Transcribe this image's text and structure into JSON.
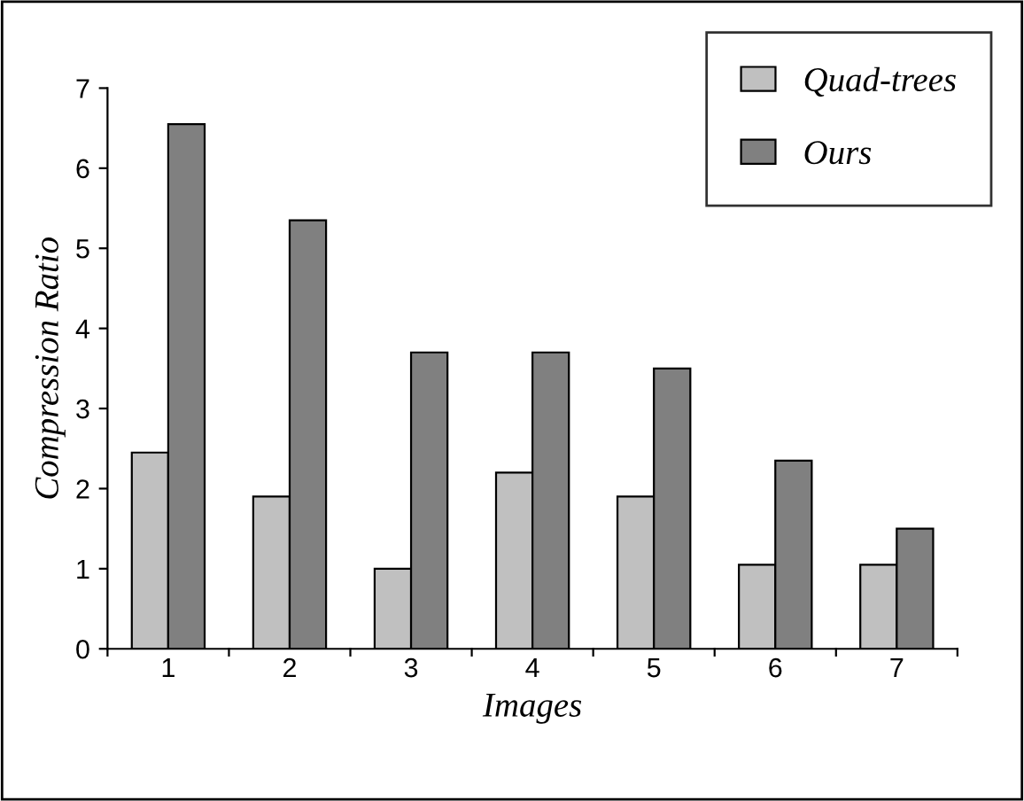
{
  "chart_data": {
    "type": "bar",
    "xlabel": "Images",
    "ylabel": "Compression Ratio",
    "categories": [
      "1",
      "2",
      "3",
      "4",
      "5",
      "6",
      "7"
    ],
    "series": [
      {
        "name": "Quad-trees",
        "color": "#c0c0c0",
        "values": [
          2.45,
          1.9,
          1.0,
          2.2,
          1.9,
          1.05,
          1.05
        ]
      },
      {
        "name": "Ours",
        "color": "#808080",
        "values": [
          6.55,
          5.35,
          3.7,
          3.7,
          3.5,
          2.35,
          1.5
        ]
      }
    ],
    "ylim": [
      0,
      7
    ],
    "yticks": [
      0,
      1,
      2,
      3,
      4,
      5,
      6,
      7
    ],
    "grid": false,
    "legend": "top right"
  }
}
